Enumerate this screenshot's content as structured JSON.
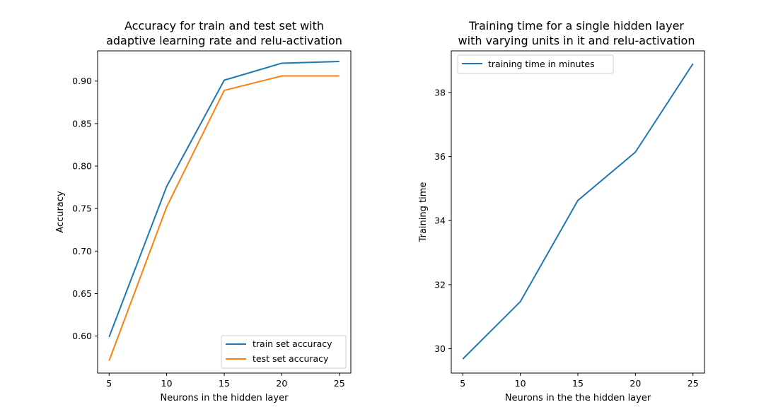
{
  "chart_data": [
    {
      "type": "line",
      "title_line1": "Accuracy for train and test set with",
      "title_line2": "adaptive learning rate and relu-activation",
      "xlabel": "Neurons in the hidden layer",
      "ylabel": "Accuracy",
      "x": [
        5,
        10,
        15,
        20,
        25
      ],
      "xticks": [
        "5",
        "10",
        "15",
        "20",
        "25"
      ],
      "yticks": [
        "0.60",
        "0.65",
        "0.70",
        "0.75",
        "0.80",
        "0.85",
        "0.90"
      ],
      "ytick_values": [
        0.6,
        0.65,
        0.7,
        0.75,
        0.8,
        0.85,
        0.9
      ],
      "xlim": [
        4,
        26
      ],
      "ylim": [
        0.5565,
        0.9355
      ],
      "grid": false,
      "legend_position": "bottom-right",
      "series": [
        {
          "name": "train set accuracy",
          "color": "#1f77b4",
          "values": [
            0.599,
            0.776,
            0.901,
            0.921,
            0.923
          ]
        },
        {
          "name": "test set accuracy",
          "color": "#ff7f0e",
          "values": [
            0.571,
            0.752,
            0.889,
            0.906,
            0.906
          ]
        }
      ]
    },
    {
      "type": "line",
      "title_line1": "Training time for a single hidden layer",
      "title_line2": "with varying units in it and relu-activation",
      "xlabel": "Neurons in the the hidden layer",
      "ylabel": "Training time",
      "x": [
        5,
        10,
        15,
        20,
        25
      ],
      "xticks": [
        "5",
        "10",
        "15",
        "20",
        "25"
      ],
      "yticks": [
        "30",
        "32",
        "34",
        "36",
        "38"
      ],
      "ytick_values": [
        30,
        32,
        34,
        36,
        38
      ],
      "xlim": [
        4,
        26
      ],
      "ylim": [
        29.24,
        39.3
      ],
      "grid": false,
      "legend_position": "top-left",
      "series": [
        {
          "name": "training time in minutes",
          "color": "#1f77b4",
          "values": [
            29.68,
            31.47,
            34.63,
            36.14,
            38.9
          ]
        }
      ]
    }
  ]
}
